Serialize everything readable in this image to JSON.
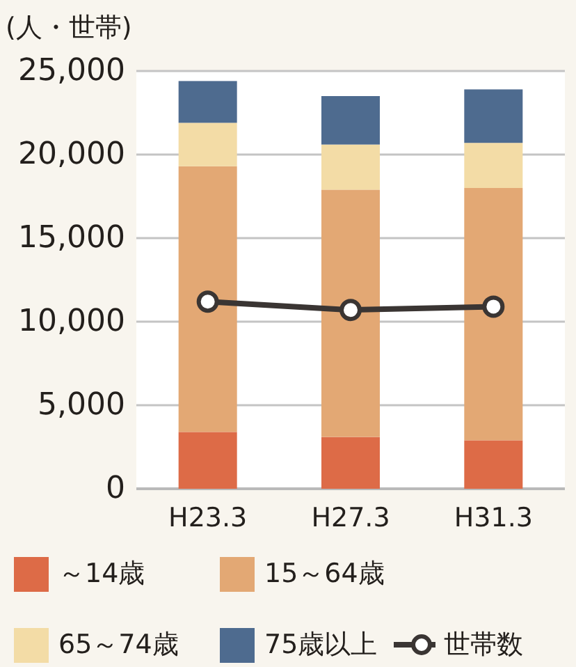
{
  "chart_data": {
    "type": "bar",
    "stacked": true,
    "ylabel": "(人・世帯)",
    "categories": [
      "H23.3",
      "H27.3",
      "H31.3"
    ],
    "series": [
      {
        "name": "～14歳",
        "color": "#dd6b47",
        "values": [
          3400,
          3100,
          2900
        ]
      },
      {
        "name": "15～64歳",
        "color": "#e3a874",
        "values": [
          15900,
          14800,
          15100
        ]
      },
      {
        "name": "65～74歳",
        "color": "#f3dca6",
        "values": [
          2600,
          2700,
          2700
        ]
      },
      {
        "name": "75歳以上",
        "color": "#4e6b8f",
        "values": [
          2500,
          2900,
          3200
        ]
      },
      {
        "name": "世帯数",
        "type": "line",
        "color": "#3a3533",
        "values": [
          11200,
          10700,
          10900
        ]
      }
    ],
    "ylim": [
      0,
      25000
    ],
    "yticks": [
      {
        "value": 0,
        "label": "0"
      },
      {
        "value": 5000,
        "label": "5,000"
      },
      {
        "value": 10000,
        "label": "10,000"
      },
      {
        "value": 15000,
        "label": "15,000"
      },
      {
        "value": 20000,
        "label": "20,000"
      },
      {
        "value": 25000,
        "label": "25,000"
      }
    ],
    "grid": "y",
    "legend": "bottom",
    "marker": "circle"
  }
}
